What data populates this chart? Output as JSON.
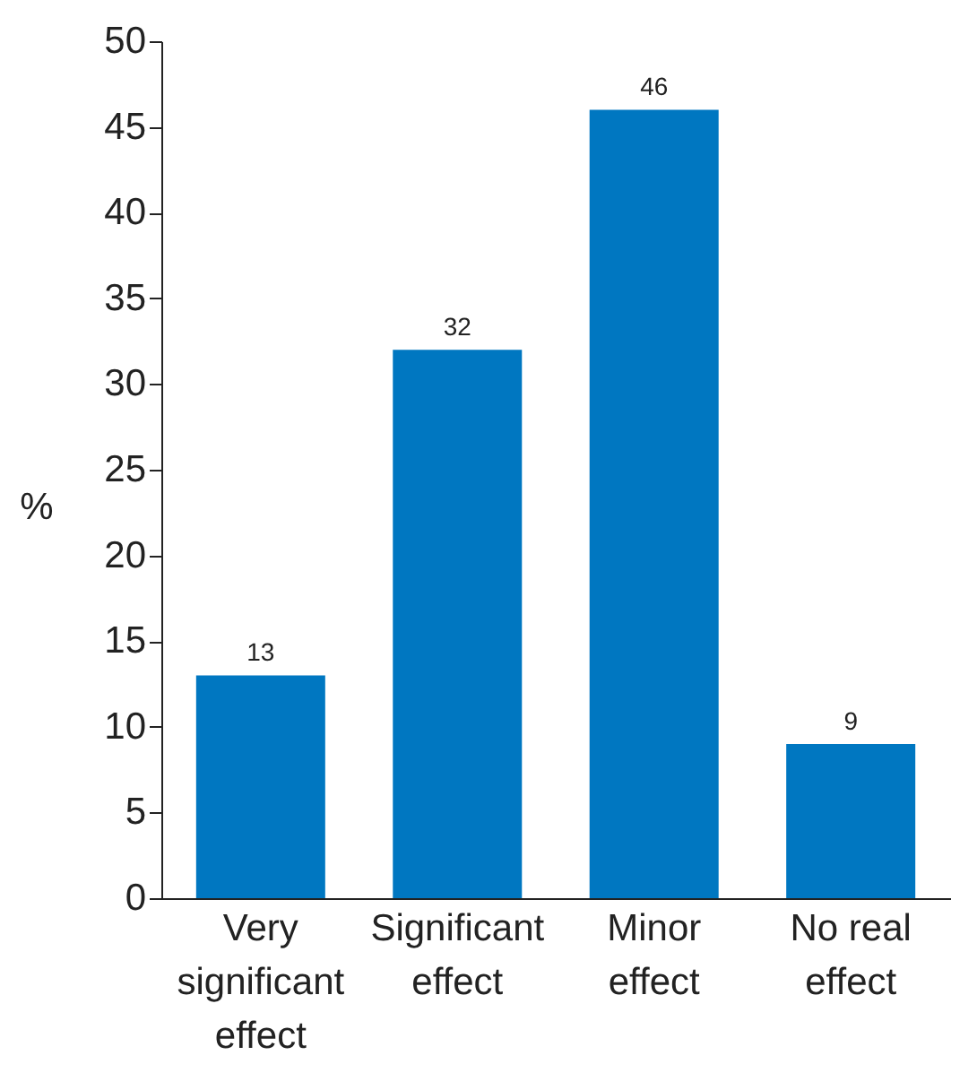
{
  "chart_data": {
    "type": "bar",
    "categories": [
      "Very significant effect",
      "Significant effect",
      "Minor effect",
      "No real effect"
    ],
    "values": [
      13,
      32,
      46,
      9
    ],
    "color": "#0077c1",
    "ylabel": "%",
    "ylim": [
      0,
      50
    ],
    "yticks": [
      0,
      5,
      10,
      15,
      20,
      25,
      30,
      35,
      40,
      45,
      50
    ],
    "data_labels": true,
    "grid": false
  }
}
